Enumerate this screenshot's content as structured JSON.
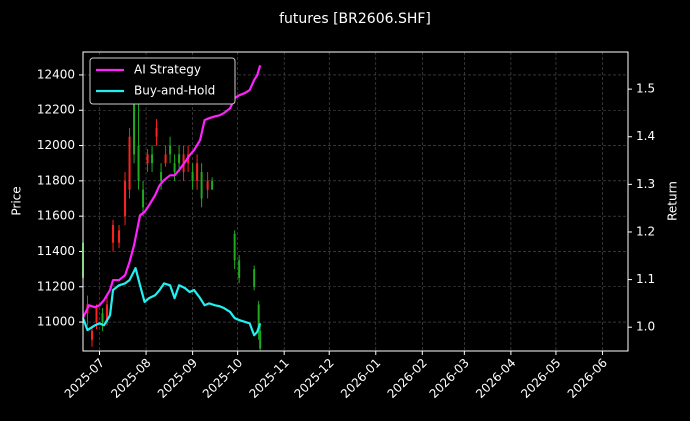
{
  "chart_data": {
    "type": "candlestick",
    "title": "futures [BR2606.SHF]",
    "ylabel": "Price",
    "y2label": "Return",
    "xlim": [
      -11,
      352
    ],
    "xticks": [
      {
        "value": 0,
        "label": "2025-07"
      },
      {
        "value": 31,
        "label": "2025-08"
      },
      {
        "value": 62,
        "label": "2025-09"
      },
      {
        "value": 92,
        "label": "2025-10"
      },
      {
        "value": 123,
        "label": "2025-11"
      },
      {
        "value": 153,
        "label": "2025-12"
      },
      {
        "value": 184,
        "label": "2026-01"
      },
      {
        "value": 215,
        "label": "2026-02"
      },
      {
        "value": 243,
        "label": "2026-03"
      },
      {
        "value": 274,
        "label": "2026-04"
      },
      {
        "value": 304,
        "label": "2026-05"
      },
      {
        "value": 335,
        "label": "2026-06"
      }
    ],
    "ylim": [
      10836,
      12530
    ],
    "yticks": [
      11000,
      11200,
      11400,
      11600,
      11800,
      12000,
      12200,
      12400
    ],
    "y2lim": [
      0.95,
      1.578
    ],
    "y2ticks": [
      {
        "value": 1,
        "label": "1.0"
      },
      1.1,
      1.2,
      1.3,
      1.4,
      1.5
    ],
    "grid": true,
    "legend": "upper left",
    "candles": {
      "up_color": "#ff2020",
      "down_color": "#1faa1f",
      "x": [
        -11,
        -8,
        -5,
        -2,
        2,
        5,
        9,
        13,
        17,
        20,
        23,
        26,
        29,
        32,
        35,
        38,
        41,
        44,
        47,
        50,
        53,
        56,
        59,
        62,
        65,
        68,
        72,
        75,
        90,
        93,
        103,
        106,
        107
      ],
      "open": [
        11450,
        11050,
        10900,
        11000,
        11050,
        11000,
        11450,
        11450,
        11600,
        11750,
        12250,
        12000,
        11750,
        11900,
        11950,
        12050,
        11850,
        11900,
        12000,
        11900,
        11950,
        11850,
        11900,
        11850,
        11800,
        11850,
        11750,
        11800,
        11500,
        11350,
        11300,
        11100,
        10950
      ],
      "high": [
        11480,
        11150,
        10980,
        11100,
        11080,
        11150,
        11580,
        11550,
        11850,
        12100,
        12300,
        12250,
        11800,
        11980,
        12000,
        12150,
        11900,
        12000,
        12050,
        11950,
        12000,
        12000,
        12000,
        11900,
        11950,
        11900,
        11850,
        11820,
        11520,
        11380,
        11320,
        11120,
        10980
      ],
      "low": [
        11200,
        10980,
        10860,
        10960,
        10950,
        10980,
        11400,
        11420,
        11550,
        11700,
        11900,
        11750,
        11600,
        11850,
        11850,
        12000,
        11750,
        11880,
        11900,
        11800,
        11850,
        11800,
        11850,
        11750,
        11750,
        11650,
        11700,
        11750,
        11300,
        11220,
        11180,
        10900,
        10840
      ],
      "close": [
        11250,
        11100,
        10950,
        11080,
        11000,
        11100,
        11550,
        11520,
        11800,
        12050,
        11950,
        11800,
        11650,
        11950,
        11900,
        12100,
        11800,
        11950,
        11950,
        11850,
        11900,
        11950,
        11950,
        11800,
        11900,
        11700,
        11800,
        11750,
        11350,
        11250,
        11200,
        10950,
        10850
      ]
    },
    "series": [
      {
        "name": "AI Strategy",
        "color": "#ff22ff",
        "axis": "y2",
        "x": [
          -11,
          -7,
          -3,
          0,
          3,
          7,
          9,
          13,
          17,
          20,
          23,
          27,
          30,
          33,
          37,
          40,
          43,
          47,
          50,
          53,
          57,
          60,
          63,
          67,
          70,
          73,
          77,
          80,
          83,
          87,
          90,
          93,
          97,
          100,
          103,
          105,
          107
        ],
        "values": [
          1.02,
          1.046,
          1.042,
          1.046,
          1.057,
          1.078,
          1.099,
          1.099,
          1.109,
          1.137,
          1.172,
          1.235,
          1.242,
          1.256,
          1.277,
          1.298,
          1.309,
          1.319,
          1.319,
          1.33,
          1.347,
          1.361,
          1.372,
          1.393,
          1.435,
          1.439,
          1.443,
          1.445,
          1.45,
          1.46,
          1.481,
          1.487,
          1.492,
          1.498,
          1.519,
          1.529,
          1.55
        ]
      },
      {
        "name": "Buy-and-Hold",
        "color": "#22f0f0",
        "axis": "y2",
        "x": [
          -11,
          -8,
          -3,
          0,
          3,
          7,
          9,
          13,
          17,
          20,
          24,
          27,
          30,
          33,
          37,
          40,
          43,
          47,
          50,
          53,
          57,
          60,
          63,
          67,
          70,
          73,
          77,
          80,
          83,
          87,
          90,
          93,
          97,
          100,
          103,
          105,
          107
        ],
        "values": [
          1.019,
          0.994,
          1.004,
          1.008,
          1.004,
          1.025,
          1.078,
          1.088,
          1.092,
          1.099,
          1.124,
          1.088,
          1.053,
          1.061,
          1.067,
          1.078,
          1.092,
          1.088,
          1.061,
          1.088,
          1.082,
          1.074,
          1.078,
          1.061,
          1.046,
          1.05,
          1.046,
          1.044,
          1.04,
          1.032,
          1.019,
          1.015,
          1.011,
          1.008,
          0.983,
          0.99,
          1.008
        ]
      }
    ]
  }
}
